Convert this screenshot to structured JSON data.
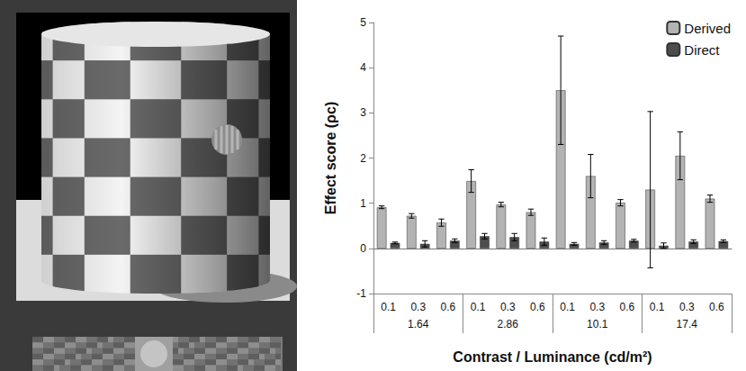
{
  "chart_data": {
    "type": "bar",
    "x_label": "Contrast / Luminance (cd/m²)",
    "y_label": "Effect score (ρc)",
    "categories": [
      "0.1",
      "0.3",
      "0.6",
      "0.1",
      "0.3",
      "0.6",
      "0.1",
      "0.3",
      "0.6",
      "0.1",
      "0.3",
      "0.6"
    ],
    "category_groups": [
      "1.64",
      "1.64",
      "1.64",
      "2.86",
      "2.86",
      "2.86",
      "10.1",
      "10.1",
      "10.1",
      "17.4",
      "17.4",
      "17.4"
    ],
    "series": [
      {
        "name": "Derived",
        "color": "#b3b3b3",
        "values": [
          0.91,
          0.72,
          0.57,
          1.49,
          0.97,
          0.8,
          3.5,
          1.6,
          1.01,
          1.3,
          2.05,
          1.1
        ],
        "errors": [
          0.03,
          0.05,
          0.08,
          0.25,
          0.05,
          0.07,
          1.2,
          0.48,
          0.07,
          1.73,
          0.53,
          0.08
        ]
      },
      {
        "name": "Direct",
        "color": "#4d4d4d",
        "values": [
          0.12,
          0.1,
          0.17,
          0.27,
          0.25,
          0.15,
          0.1,
          0.13,
          0.17,
          0.06,
          0.15,
          0.16
        ],
        "errors": [
          0.02,
          0.07,
          0.04,
          0.06,
          0.08,
          0.08,
          0.03,
          0.04,
          0.03,
          0.06,
          0.04,
          0.03
        ]
      }
    ],
    "ylim": [
      -1,
      5
    ],
    "yticks": [
      -1,
      0,
      1,
      2,
      3,
      4,
      5
    ],
    "grid": false,
    "legend": "upper right"
  }
}
